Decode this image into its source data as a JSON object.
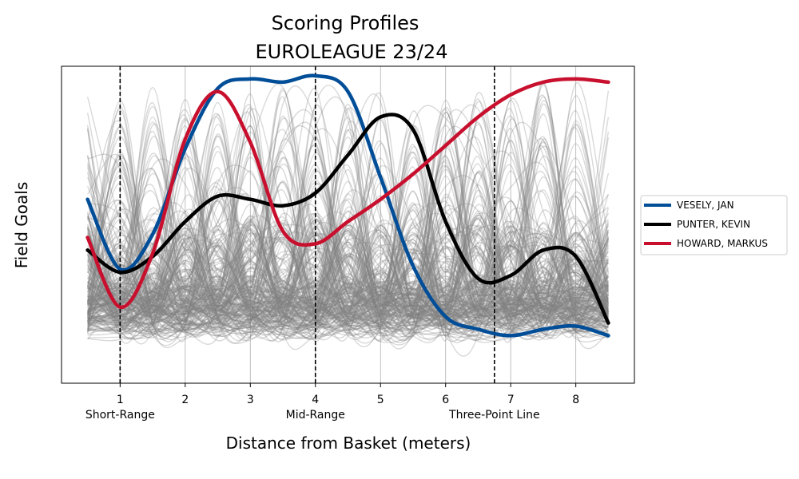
{
  "chart_data": {
    "type": "line",
    "title": "Scoring Profiles",
    "subtitle": "EUROLEAGUE 23/24",
    "xlabel": "Distance from Basket (meters)",
    "ylabel": "Field Goals",
    "xlim": [
      0.1,
      8.9
    ],
    "ylim": [
      0.0,
      1.0
    ],
    "x_ticks": [
      1,
      2,
      3,
      4,
      5,
      6,
      7,
      8
    ],
    "y_ticks_shown": false,
    "grid": "vertical",
    "reference_lines": [
      {
        "x": 1.0,
        "label": "Short-Range"
      },
      {
        "x": 4.0,
        "label": "Mid-Range"
      },
      {
        "x": 6.75,
        "label": "Three-Point Line"
      }
    ],
    "legend_position": "right",
    "background_series": {
      "count": 240,
      "color": "#808080",
      "description": "all other players"
    },
    "series": [
      {
        "name": "VESELY, JAN",
        "color": "#004d98",
        "x": [
          0.5,
          1.0,
          1.5,
          2.0,
          2.5,
          3.0,
          3.5,
          4.0,
          4.5,
          5.0,
          5.5,
          6.0,
          6.5,
          7.0,
          7.5,
          8.0,
          8.5
        ],
        "y": [
          0.58,
          0.36,
          0.47,
          0.74,
          0.93,
          0.96,
          0.95,
          0.97,
          0.92,
          0.65,
          0.37,
          0.21,
          0.17,
          0.15,
          0.17,
          0.18,
          0.15
        ]
      },
      {
        "name": "PUNTER, KEVIN",
        "color": "#000000",
        "x": [
          0.5,
          1.0,
          1.5,
          2.0,
          2.5,
          3.0,
          3.5,
          4.0,
          4.5,
          5.0,
          5.5,
          6.0,
          6.5,
          7.0,
          7.5,
          8.0,
          8.5
        ],
        "y": [
          0.42,
          0.35,
          0.4,
          0.51,
          0.59,
          0.58,
          0.56,
          0.6,
          0.72,
          0.84,
          0.8,
          0.51,
          0.33,
          0.34,
          0.42,
          0.4,
          0.19
        ]
      },
      {
        "name": "HOWARD, MARKUS",
        "color": "#c8102e",
        "x": [
          0.5,
          1.0,
          1.5,
          2.0,
          2.5,
          3.0,
          3.5,
          4.0,
          4.5,
          5.0,
          5.5,
          6.0,
          6.5,
          7.0,
          7.5,
          8.0,
          8.5
        ],
        "y": [
          0.46,
          0.24,
          0.41,
          0.77,
          0.92,
          0.76,
          0.48,
          0.44,
          0.51,
          0.58,
          0.66,
          0.75,
          0.84,
          0.91,
          0.95,
          0.96,
          0.95
        ]
      }
    ]
  }
}
